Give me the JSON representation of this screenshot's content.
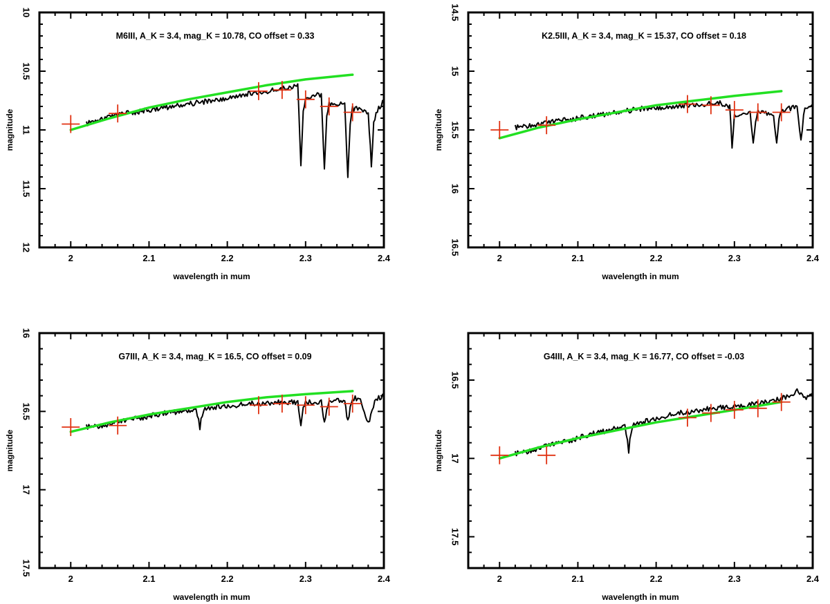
{
  "chart_data": [
    {
      "type": "line",
      "annotation": "M6III, A_K = 3.4, mag_K = 10.78, CO offset = 0.33",
      "xlabel": "wavelength in mum",
      "ylabel": "magnitude",
      "xlim": [
        1.96,
        2.4
      ],
      "ylim": [
        12,
        10
      ],
      "y_inverted": true,
      "xticks": [
        "2",
        "2.1",
        "2.2",
        "2.3",
        "2.4"
      ],
      "xtick_values": [
        2.0,
        2.1,
        2.2,
        2.3,
        2.4
      ],
      "yticks": [
        "10",
        "10.5",
        "11",
        "11.5",
        "12"
      ],
      "ytick_values": [
        10,
        10.5,
        11,
        11.5,
        12
      ],
      "series": [
        {
          "style": "spectrum",
          "color": "#000000",
          "x": [
            2.02,
            2.03,
            2.05,
            2.07,
            2.09,
            2.11,
            2.13,
            2.15,
            2.17,
            2.19,
            2.21,
            2.23,
            2.25,
            2.27,
            2.29,
            2.294,
            2.297,
            2.3,
            2.31,
            2.32,
            2.324,
            2.327,
            2.33,
            2.34,
            2.35,
            2.354,
            2.357,
            2.36,
            2.37,
            2.38,
            2.384,
            2.387,
            2.39,
            2.4
          ],
          "y": [
            10.95,
            10.92,
            10.89,
            10.86,
            10.84,
            10.82,
            10.8,
            10.78,
            10.76,
            10.74,
            10.71,
            10.69,
            10.67,
            10.65,
            10.62,
            11.3,
            10.85,
            10.72,
            10.7,
            10.7,
            11.32,
            10.9,
            10.78,
            10.78,
            10.78,
            11.42,
            10.95,
            10.82,
            10.82,
            10.85,
            11.3,
            10.95,
            10.85,
            10.75
          ]
        },
        {
          "style": "model",
          "color": "#22e022",
          "x": [
            2.0,
            2.05,
            2.1,
            2.15,
            2.2,
            2.25,
            2.3,
            2.36
          ],
          "y": [
            11.0,
            10.9,
            10.81,
            10.74,
            10.68,
            10.62,
            10.57,
            10.53
          ]
        },
        {
          "style": "photometry",
          "color": "#e03010",
          "x": [
            2.0,
            2.06,
            2.24,
            2.27,
            2.3,
            2.33,
            2.36
          ],
          "y": [
            10.95,
            10.86,
            10.67,
            10.66,
            10.74,
            10.8,
            10.85
          ]
        }
      ]
    },
    {
      "type": "line",
      "annotation": "K2.5III, A_K = 3.4, mag_K = 15.37, CO offset = 0.18",
      "xlabel": "wavelength in mum",
      "ylabel": "magnitude",
      "xlim": [
        1.96,
        2.4
      ],
      "ylim": [
        16.5,
        14.5
      ],
      "y_inverted": true,
      "xticks": [
        "2",
        "2.1",
        "2.2",
        "2.3",
        "2.4"
      ],
      "xtick_values": [
        2.0,
        2.1,
        2.2,
        2.3,
        2.4
      ],
      "yticks": [
        "14.5",
        "15",
        "15.5",
        "16",
        "16.5"
      ],
      "ytick_values": [
        14.5,
        15.0,
        15.5,
        16.0,
        16.5
      ],
      "series": [
        {
          "style": "spectrum",
          "color": "#000000",
          "x": [
            2.02,
            2.04,
            2.06,
            2.08,
            2.1,
            2.12,
            2.14,
            2.16,
            2.18,
            2.2,
            2.22,
            2.24,
            2.26,
            2.28,
            2.294,
            2.297,
            2.3,
            2.31,
            2.32,
            2.324,
            2.327,
            2.33,
            2.34,
            2.35,
            2.354,
            2.357,
            2.36,
            2.37,
            2.38,
            2.385,
            2.39,
            2.4
          ],
          "y": [
            15.48,
            15.46,
            15.44,
            15.42,
            15.4,
            15.38,
            15.36,
            15.34,
            15.32,
            15.31,
            15.3,
            15.29,
            15.28,
            15.27,
            15.3,
            15.65,
            15.38,
            15.35,
            15.34,
            15.62,
            15.42,
            15.35,
            15.36,
            15.37,
            15.62,
            15.42,
            15.34,
            15.32,
            15.3,
            15.58,
            15.3,
            15.28
          ]
        },
        {
          "style": "model",
          "color": "#22e022",
          "x": [
            2.0,
            2.05,
            2.1,
            2.15,
            2.2,
            2.25,
            2.3,
            2.36
          ],
          "y": [
            15.57,
            15.48,
            15.41,
            15.35,
            15.29,
            15.25,
            15.21,
            15.17
          ]
        },
        {
          "style": "photometry",
          "color": "#e03010",
          "x": [
            2.0,
            2.06,
            2.24,
            2.27,
            2.3,
            2.33,
            2.36
          ],
          "y": [
            15.5,
            15.46,
            15.28,
            15.29,
            15.33,
            15.35,
            15.35
          ]
        }
      ]
    },
    {
      "type": "line",
      "annotation": "G7III, A_K = 3.4, mag_K = 16.5, CO offset = 0.09",
      "xlabel": "wavelength in mum",
      "ylabel": "magnitude",
      "xlim": [
        1.96,
        2.4
      ],
      "ylim": [
        17.5,
        16
      ],
      "y_inverted": true,
      "xticks": [
        "2",
        "2.1",
        "2.2",
        "2.3",
        "2.4"
      ],
      "xtick_values": [
        2.0,
        2.1,
        2.2,
        2.3,
        2.4
      ],
      "yticks": [
        "16",
        "16.5",
        "17",
        "17.5"
      ],
      "ytick_values": [
        16.0,
        16.5,
        17.0,
        17.5
      ],
      "series": [
        {
          "style": "spectrum",
          "color": "#000000",
          "x": [
            2.02,
            2.04,
            2.06,
            2.08,
            2.1,
            2.12,
            2.14,
            2.16,
            2.165,
            2.168,
            2.17,
            2.19,
            2.21,
            2.23,
            2.25,
            2.27,
            2.29,
            2.294,
            2.297,
            2.3,
            2.31,
            2.32,
            2.324,
            2.327,
            2.33,
            2.34,
            2.35,
            2.354,
            2.357,
            2.36,
            2.37,
            2.38,
            2.39,
            2.4
          ],
          "y": [
            16.6,
            16.59,
            16.57,
            16.55,
            16.53,
            16.51,
            16.5,
            16.49,
            16.6,
            16.52,
            16.48,
            16.47,
            16.46,
            16.45,
            16.45,
            16.44,
            16.44,
            16.58,
            16.47,
            16.44,
            16.44,
            16.44,
            16.58,
            16.48,
            16.44,
            16.43,
            16.43,
            16.57,
            16.47,
            16.42,
            16.41,
            16.58,
            16.42,
            16.4
          ]
        },
        {
          "style": "model",
          "color": "#22e022",
          "x": [
            2.0,
            2.05,
            2.1,
            2.15,
            2.2,
            2.25,
            2.3,
            2.36
          ],
          "y": [
            16.63,
            16.57,
            16.52,
            16.48,
            16.44,
            16.41,
            16.39,
            16.37
          ]
        },
        {
          "style": "photometry",
          "color": "#e03010",
          "x": [
            2.0,
            2.06,
            2.24,
            2.27,
            2.3,
            2.33,
            2.36
          ],
          "y": [
            16.6,
            16.59,
            16.46,
            16.45,
            16.46,
            16.47,
            16.45
          ]
        }
      ]
    },
    {
      "type": "line",
      "annotation": "G4III, A_K = 3.4, mag_K = 16.77, CO offset = -0.03",
      "xlabel": "wavelength in mum",
      "ylabel": "magnitude",
      "xlim": [
        1.96,
        2.4
      ],
      "ylim": [
        17.7,
        16.2
      ],
      "y_inverted": true,
      "xticks": [
        "2",
        "2.1",
        "2.2",
        "2.3",
        "2.4"
      ],
      "xtick_values": [
        2.0,
        2.1,
        2.2,
        2.3,
        2.4
      ],
      "yticks": [
        "16.5",
        "17",
        "17.5"
      ],
      "ytick_values": [
        16.5,
        17.0,
        17.5
      ],
      "series": [
        {
          "style": "spectrum",
          "color": "#000000",
          "x": [
            2.02,
            2.04,
            2.06,
            2.08,
            2.1,
            2.12,
            2.14,
            2.16,
            2.165,
            2.168,
            2.17,
            2.19,
            2.21,
            2.23,
            2.25,
            2.27,
            2.29,
            2.31,
            2.33,
            2.35,
            2.37,
            2.38,
            2.39,
            2.4
          ],
          "y": [
            16.97,
            16.95,
            16.92,
            16.9,
            16.87,
            16.84,
            16.82,
            16.79,
            16.95,
            16.83,
            16.78,
            16.76,
            16.73,
            16.71,
            16.7,
            16.68,
            16.67,
            16.66,
            16.65,
            16.63,
            16.6,
            16.57,
            16.62,
            16.58
          ]
        },
        {
          "style": "model",
          "color": "#22e022",
          "x": [
            2.0,
            2.05,
            2.1,
            2.15,
            2.2,
            2.25,
            2.3,
            2.36
          ],
          "y": [
            17.0,
            16.93,
            16.87,
            16.82,
            16.77,
            16.73,
            16.69,
            16.64
          ]
        },
        {
          "style": "photometry",
          "color": "#e03010",
          "x": [
            2.0,
            2.06,
            2.24,
            2.27,
            2.3,
            2.33,
            2.36
          ],
          "y": [
            16.98,
            16.98,
            16.74,
            16.71,
            16.69,
            16.68,
            16.64
          ]
        }
      ]
    }
  ]
}
